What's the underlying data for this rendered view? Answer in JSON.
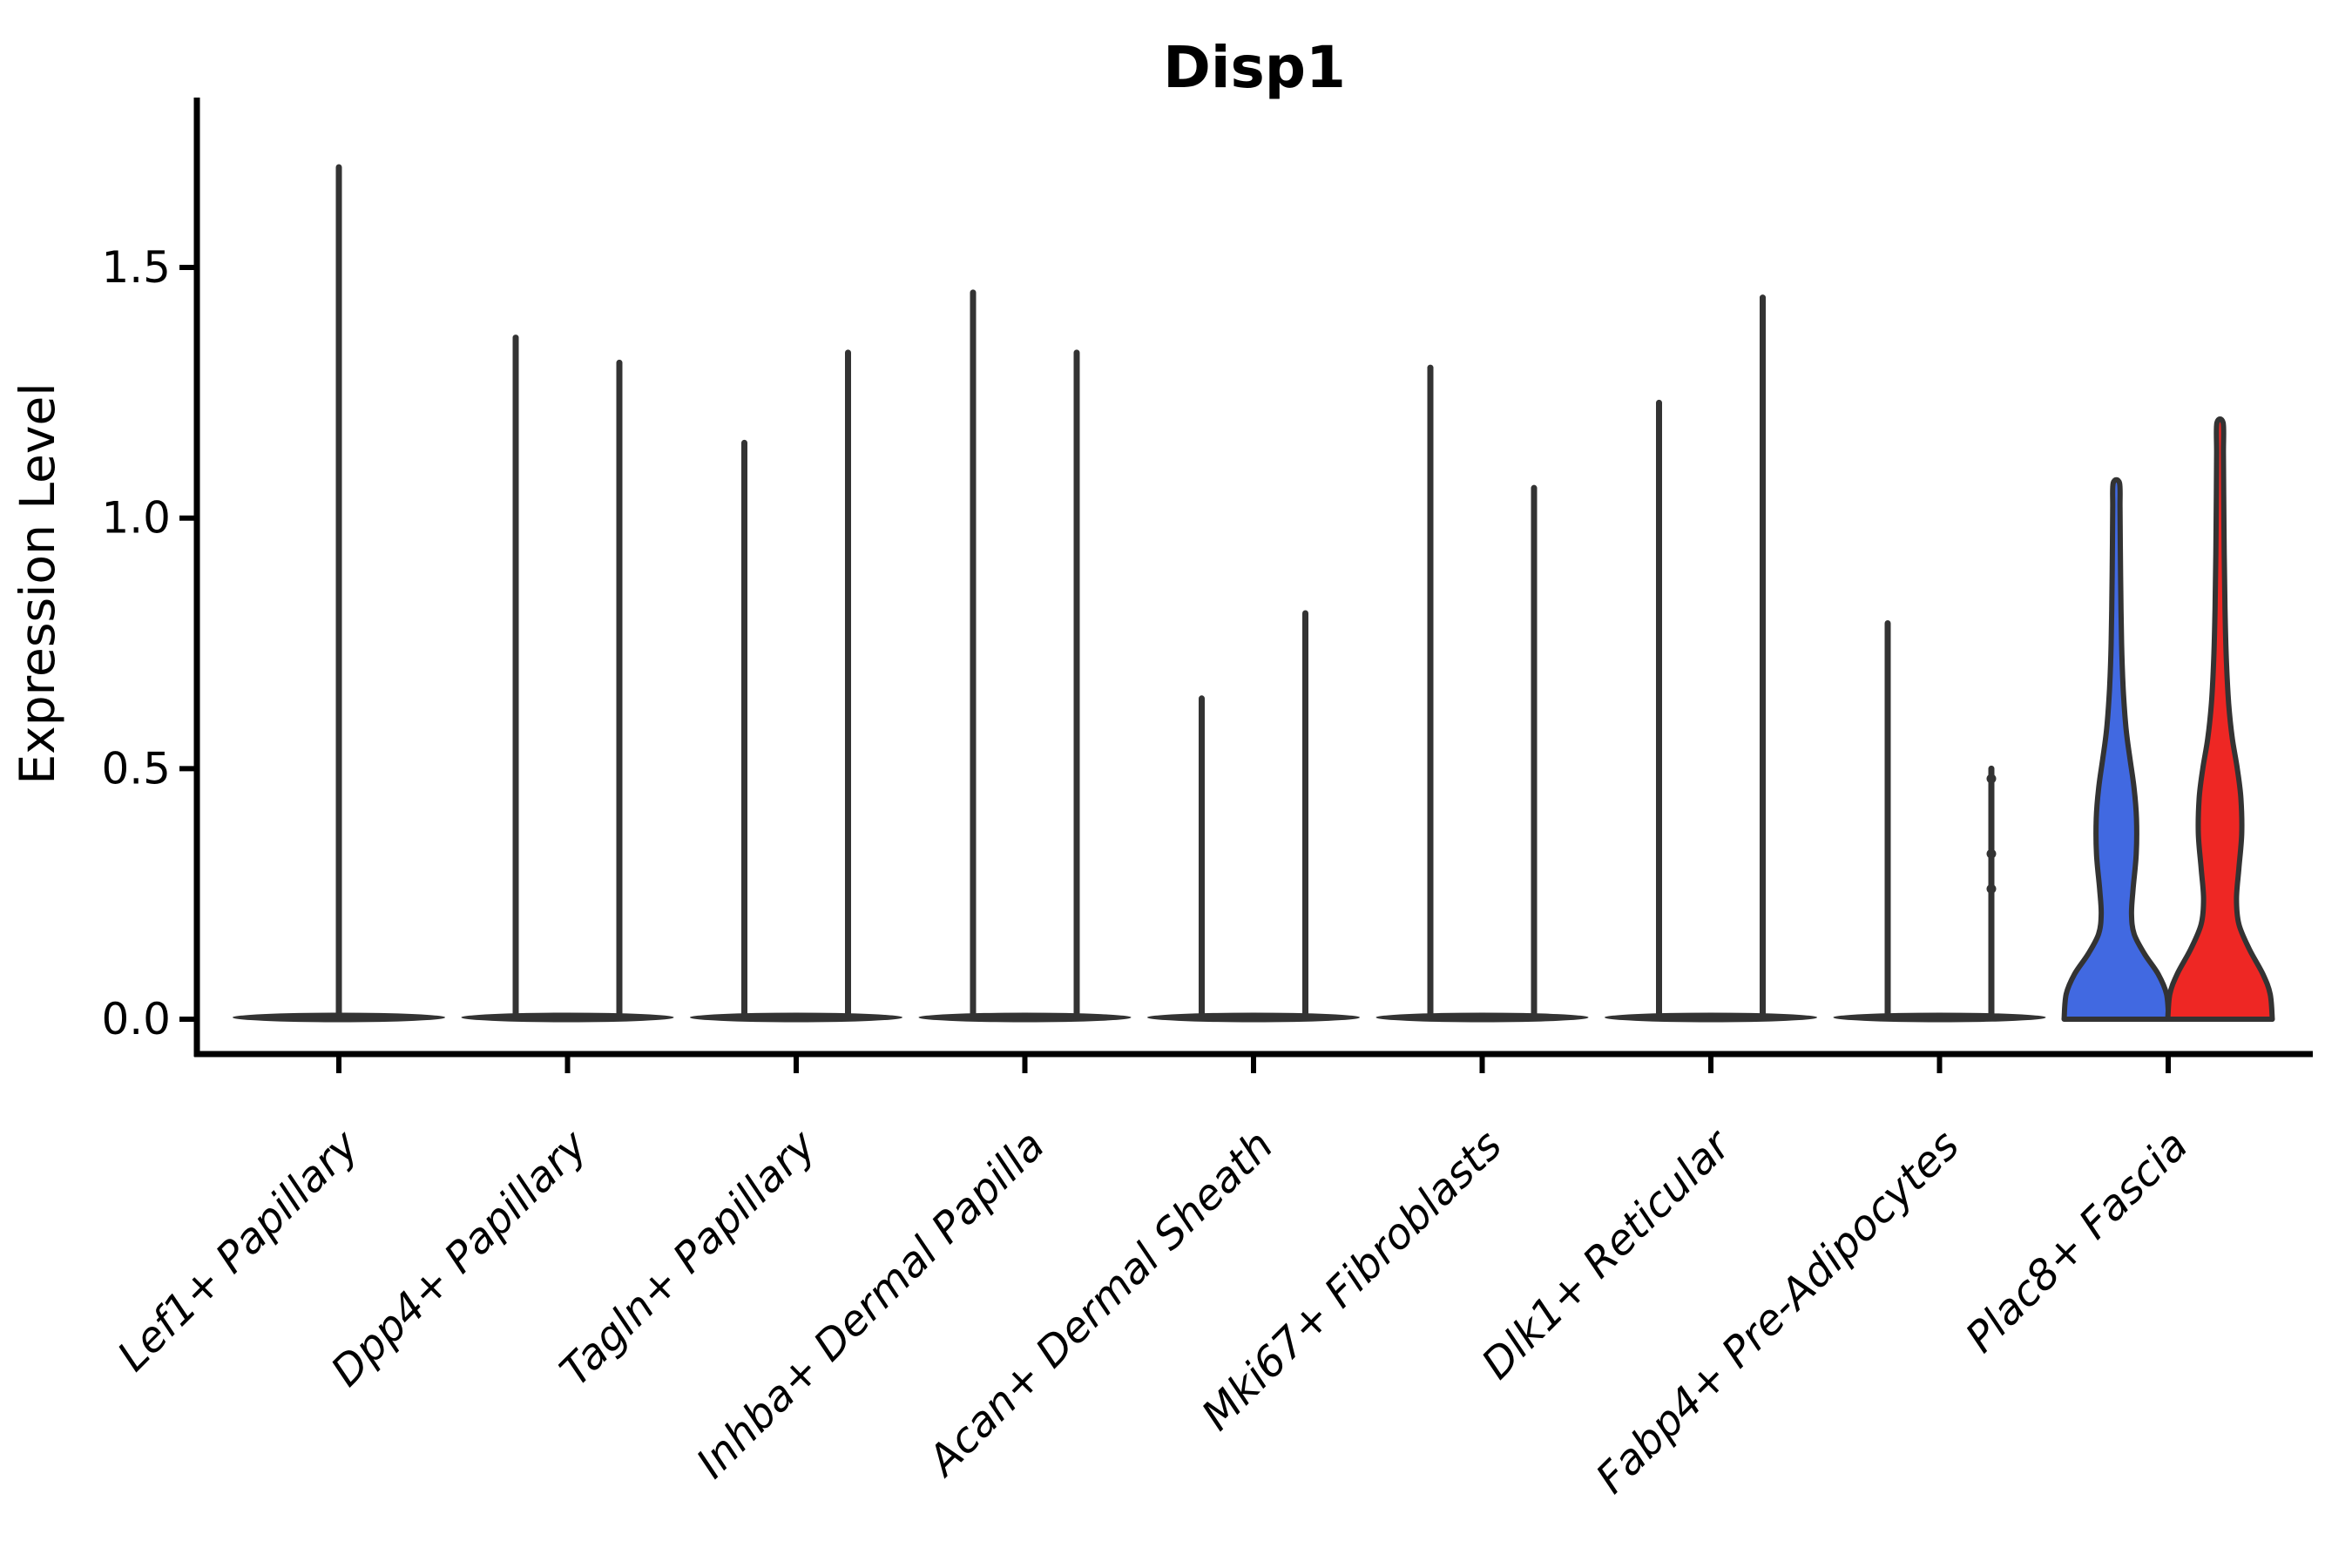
{
  "figure": {
    "title": "Disp1",
    "y_axis": {
      "label": "Expression Level",
      "tick_labels": [
        "0.0",
        "0.5",
        "1.0",
        "1.5"
      ]
    },
    "x_axis": {
      "label": ""
    }
  },
  "colors": {
    "background": "#ffffff",
    "axis": "#000000",
    "violin_outline": "#333333",
    "baseline_mass": "#333333",
    "split_blue": "#4169e1",
    "split_red": "#ee2724",
    "text": "#000000"
  },
  "chart_data": {
    "type": "violin",
    "title": "Disp1",
    "xlabel": "",
    "ylabel": "Expression Level",
    "ylim": [
      -0.07,
      1.83
    ],
    "yticks": [
      0.0,
      0.5,
      1.0,
      1.5
    ],
    "ytick_labels": [
      "0.0",
      "0.5",
      "1.0",
      "1.5"
    ],
    "grid": false,
    "legend": "none",
    "categories": [
      "Lef1+ Papillary",
      "Dpp4+ Papillary",
      "Tagln+ Papillary",
      "Inhba+ Dermal Papilla",
      "Acan+ Dermal Sheath",
      "Mki67+ Fibroblasts",
      "Dlk1+ Reticular",
      "Fabp4+ Pre-Adipocytes",
      "Plac8+ Fascia"
    ],
    "description": "Split violin plot; every category shows a flattened violin mass at expression 0 plus thin density spikes up to the max expression; only Plac8+ Fascia shows two wide filled violins (blue = left group, red = right group).",
    "violins": [
      {
        "category_index": 0,
        "position": "center",
        "style": "spike",
        "max_expression": 1.7
      },
      {
        "category_index": 1,
        "position": "left",
        "style": "spike",
        "max_expression": 1.36
      },
      {
        "category_index": 1,
        "position": "right",
        "style": "spike",
        "max_expression": 1.31
      },
      {
        "category_index": 2,
        "position": "left",
        "style": "spike",
        "max_expression": 1.15
      },
      {
        "category_index": 2,
        "position": "right",
        "style": "spike",
        "max_expression": 1.33
      },
      {
        "category_index": 3,
        "position": "left",
        "style": "spike",
        "max_expression": 1.45
      },
      {
        "category_index": 3,
        "position": "right",
        "style": "spike",
        "max_expression": 1.33
      },
      {
        "category_index": 4,
        "position": "left",
        "style": "spike",
        "max_expression": 0.64
      },
      {
        "category_index": 4,
        "position": "right",
        "style": "spike",
        "max_expression": 0.81
      },
      {
        "category_index": 5,
        "position": "left",
        "style": "spike",
        "max_expression": 1.3
      },
      {
        "category_index": 5,
        "position": "right",
        "style": "spike",
        "max_expression": 1.06
      },
      {
        "category_index": 6,
        "position": "left",
        "style": "spike",
        "max_expression": 1.23
      },
      {
        "category_index": 6,
        "position": "right",
        "style": "spike",
        "max_expression": 1.44
      },
      {
        "category_index": 7,
        "position": "left",
        "style": "spike",
        "max_expression": 0.79
      },
      {
        "category_index": 7,
        "position": "right",
        "style": "spike",
        "max_expression": 0.5,
        "points": [
          0.48,
          0.33,
          0.26
        ]
      },
      {
        "category_index": 8,
        "position": "left",
        "style": "filled",
        "max_expression": 1.07,
        "fill_color": "#4169e1",
        "width_profile": [
          [
            0.0,
            1.0
          ],
          [
            0.05,
            0.96
          ],
          [
            0.09,
            0.8
          ],
          [
            0.13,
            0.54
          ],
          [
            0.17,
            0.34
          ],
          [
            0.21,
            0.29
          ],
          [
            0.26,
            0.32
          ],
          [
            0.33,
            0.38
          ],
          [
            0.4,
            0.385
          ],
          [
            0.46,
            0.34
          ],
          [
            0.52,
            0.26
          ],
          [
            0.58,
            0.185
          ],
          [
            0.66,
            0.13
          ],
          [
            0.75,
            0.1
          ],
          [
            0.85,
            0.085
          ],
          [
            0.95,
            0.075
          ],
          [
            1.02,
            0.07
          ],
          [
            1.07,
            0.06
          ]
        ]
      },
      {
        "category_index": 8,
        "position": "right",
        "style": "filled",
        "max_expression": 1.19,
        "fill_color": "#ee2724",
        "width_profile": [
          [
            0.0,
            1.0
          ],
          [
            0.05,
            0.96
          ],
          [
            0.09,
            0.82
          ],
          [
            0.14,
            0.56
          ],
          [
            0.19,
            0.36
          ],
          [
            0.24,
            0.315
          ],
          [
            0.3,
            0.36
          ],
          [
            0.37,
            0.415
          ],
          [
            0.44,
            0.4
          ],
          [
            0.5,
            0.33
          ],
          [
            0.56,
            0.235
          ],
          [
            0.63,
            0.165
          ],
          [
            0.72,
            0.12
          ],
          [
            0.82,
            0.095
          ],
          [
            0.93,
            0.08
          ],
          [
            1.05,
            0.07
          ],
          [
            1.13,
            0.065
          ],
          [
            1.19,
            0.06
          ]
        ]
      }
    ]
  }
}
